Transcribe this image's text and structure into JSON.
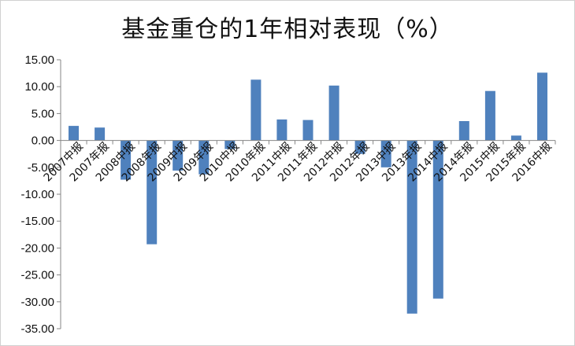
{
  "chart_data": {
    "type": "bar",
    "title": "基金重仓的1年相对表现（%）",
    "xlabel": "",
    "ylabel": "",
    "categories": [
      "2007中报",
      "2007年报",
      "2008中报",
      "2008年报",
      "2009中报",
      "2009年报",
      "2010中报",
      "2010年报",
      "2011中报",
      "2011年报",
      "2012中报",
      "2012年报",
      "2013中报",
      "2013年报",
      "2014中报",
      "2014年报",
      "2015中报",
      "2015年报",
      "2016中报"
    ],
    "series": [
      {
        "values": [
          2.7,
          2.4,
          -7.3,
          -19.3,
          -5.6,
          -6.3,
          -1.6,
          11.3,
          3.9,
          3.8,
          10.2,
          -2.5,
          -5.0,
          -32.2,
          -29.4,
          3.6,
          9.2,
          0.9,
          12.6
        ]
      }
    ],
    "ylim": [
      -35,
      15
    ],
    "yticks": [
      "15.00",
      "10.00",
      "5.00",
      "0.00",
      "-5.00",
      "-10.00",
      "-15.00",
      "-20.00",
      "-25.00",
      "-30.00",
      "-35.00"
    ],
    "grid": false,
    "colors": {
      "bar": "#4F81BD",
      "axis": "#868686"
    }
  }
}
